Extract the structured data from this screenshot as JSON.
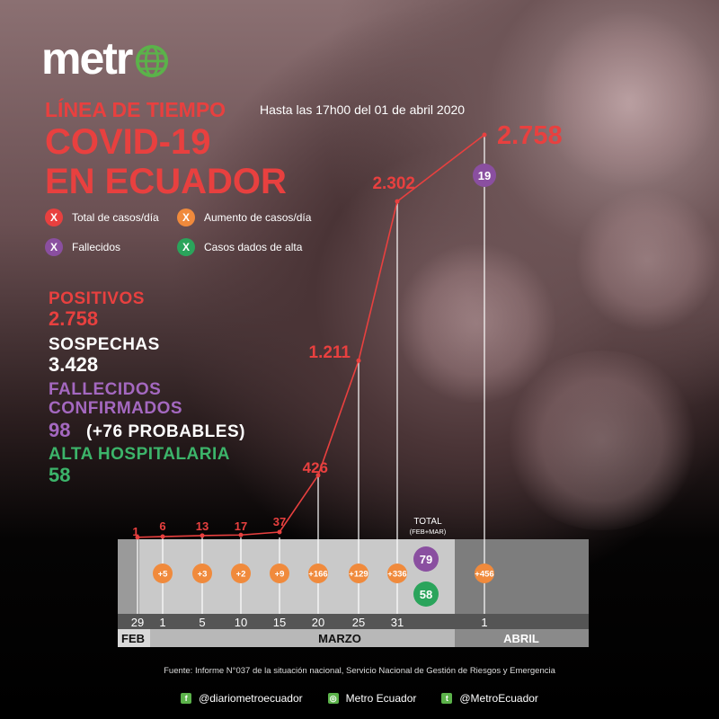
{
  "header": {
    "logo_text": "metr",
    "timeline_title": "LÍNEA DE TIEMPO",
    "date_note": "Hasta las 17h00 del 01 de abril 2020",
    "title_line1": "COVID-19",
    "title_line2": "EN ECUADOR"
  },
  "legend": [
    {
      "mark": "X",
      "label": "Total de casos/día",
      "color": "#e8403f"
    },
    {
      "mark": "X",
      "label": "Aumento de casos/día",
      "color": "#f08a3c"
    },
    {
      "mark": "X",
      "label": "Fallecidos",
      "color": "#8a4fa0"
    },
    {
      "mark": "X",
      "label": "Casos dados de alta",
      "color": "#2aa45b"
    }
  ],
  "stats": {
    "positivos_label": "POSITIVOS",
    "positivos_value": "2.758",
    "sospechas_label": "SOSPECHAS",
    "sospechas_value": "3.428",
    "fallecidos_label1": "FALLECIDOS",
    "fallecidos_label2": "CONFIRMADOS",
    "fallecidos_value": "98",
    "fallecidos_extra": "(+76 PROBABLES)",
    "alta_label": "ALTA HOSPITALARIA",
    "alta_value": "58"
  },
  "colors": {
    "total": "#e8403f",
    "increase": "#f08a3c",
    "deaths": "#8a4fa0",
    "recovered": "#2aa45b",
    "white": "#ffffff",
    "purple_text": "#a468c0",
    "green_text": "#3cb46a"
  },
  "chart_data": {
    "type": "line",
    "x": [
      "29",
      "1",
      "5",
      "10",
      "15",
      "20",
      "25",
      "31",
      "1"
    ],
    "months": [
      "FEB",
      "MARZO",
      "ABRIL"
    ],
    "series": [
      {
        "name": "Total de casos/día",
        "values": [
          1,
          6,
          13,
          17,
          37,
          426,
          1211,
          2302,
          2758
        ],
        "labels": [
          "1",
          "6",
          "13",
          "17",
          "37",
          "426",
          "1.211",
          "2.302",
          "2.758"
        ]
      },
      {
        "name": "Aumento de casos/día",
        "values": [
          null,
          5,
          3,
          2,
          9,
          166,
          129,
          336,
          456
        ],
        "labels": [
          "",
          "+5",
          "+3",
          "+2",
          "+9",
          "+166",
          "+129",
          "+336",
          "+456"
        ]
      }
    ],
    "total_label": "TOTAL",
    "total_sub": "(FEB+MAR)",
    "total_deaths": "79",
    "total_recovered": "58",
    "april_deaths": "19",
    "ylim": [
      0,
      2758
    ]
  },
  "footer": {
    "source": "Fuente: Informe N°037 de la situación nacional, Servicio Nacional de Gestión de Riesgos y Emergencia",
    "facebook": "@diariometroecuador",
    "instagram": "Metro Ecuador",
    "twitter": "@MetroEcuador"
  }
}
